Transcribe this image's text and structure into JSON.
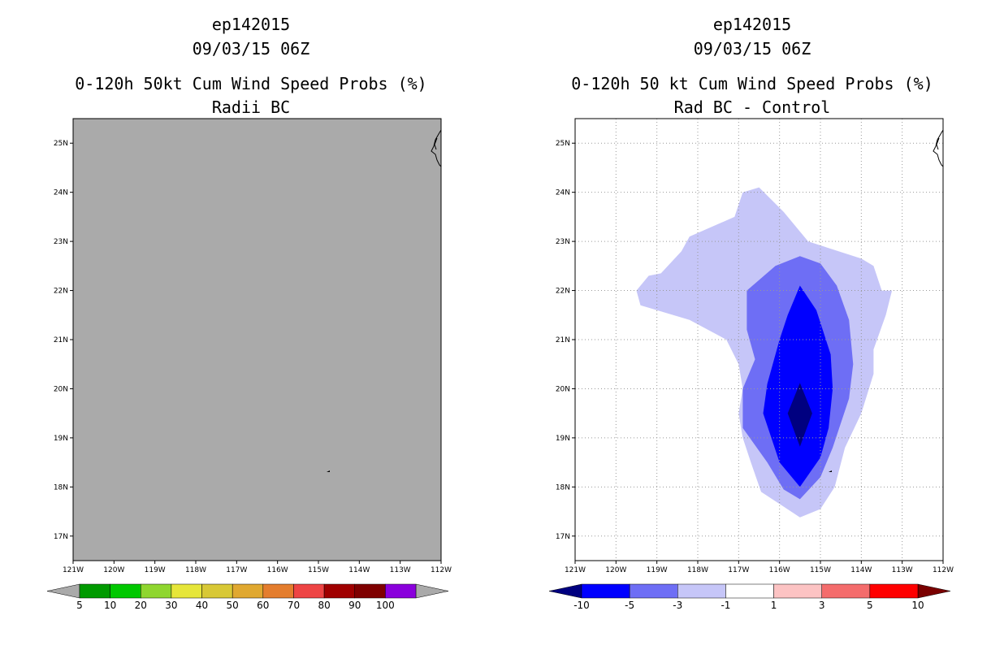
{
  "left_panel": {
    "title_storm": "ep142015",
    "title_date": "09/03/15 06Z",
    "title_product": "0-120h 50kt Cum Wind Speed Probs (%)",
    "title_sub": "Radii BC",
    "colorbar": {
      "labels": [
        "5",
        "10",
        "20",
        "30",
        "40",
        "50",
        "60",
        "70",
        "80",
        "90",
        "100"
      ],
      "colors": [
        "#009a00",
        "#00c800",
        "#8fd62f",
        "#e6e63a",
        "#d8c836",
        "#e0a830",
        "#e47d2d",
        "#ee4444",
        "#a00000",
        "#7f0000",
        "#8a00dc"
      ],
      "end_color": "#aaaaaa"
    }
  },
  "right_panel": {
    "title_storm": "ep142015",
    "title_date": "09/03/15 06Z",
    "title_product": "0-120h 50 kt Cum Wind Speed Probs (%)",
    "title_sub": "Rad BC - Control",
    "colorbar": {
      "labels": [
        "-10",
        "-5",
        "-3",
        "-1",
        "1",
        "3",
        "5",
        "10"
      ],
      "colors": [
        "#0000ff",
        "#6e6ef5",
        "#c6c6f8",
        "#ffffff",
        "#fcc3c3",
        "#f46c6c",
        "#ff0000"
      ],
      "low_end_color": "#000080",
      "high_end_color": "#7a0000"
    }
  },
  "chart_data": [
    {
      "type": "heatmap",
      "title": "0-120h 50kt Cum Wind Speed Probs (%) — Radii BC",
      "lon_range": [
        -121,
        -112
      ],
      "lat_range": [
        16.5,
        25.5
      ],
      "x_tick_labels": [
        "121W",
        "120W",
        "119W",
        "118W",
        "117W",
        "116W",
        "115W",
        "114W",
        "113W",
        "112W"
      ],
      "y_tick_labels": [
        "17N",
        "18N",
        "19N",
        "20N",
        "21N",
        "22N",
        "23N",
        "24N",
        "25N"
      ],
      "note": "Field below 5% everywhere (uniform gray fill)",
      "fill_color": "#aaaaaa"
    },
    {
      "type": "heatmap",
      "title": "0-120h 50 kt Cum Wind Speed Probs (%) — Rad BC - Control",
      "lon_range": [
        -121,
        -112
      ],
      "lat_range": [
        16.5,
        25.5
      ],
      "x_tick_labels": [
        "121W",
        "120W",
        "119W",
        "118W",
        "117W",
        "116W",
        "115W",
        "114W",
        "113W",
        "112W"
      ],
      "y_tick_labels": [
        "17N",
        "18N",
        "19N",
        "20N",
        "21N",
        "22N",
        "23N",
        "24N",
        "25N"
      ],
      "grid": true,
      "contour_levels": [
        -10,
        -5,
        -3,
        -1,
        1,
        3,
        5,
        10
      ],
      "regions": [
        {
          "level": "-3 to -1",
          "color": "#c6c6f8",
          "polygon": [
            [
              -116.5,
              24.1
            ],
            [
              -115.9,
              23.6
            ],
            [
              -115.3,
              23.0
            ],
            [
              -114.0,
              22.65
            ],
            [
              -113.7,
              22.5
            ],
            [
              -113.5,
              22.0
            ],
            [
              -113.25,
              22.0
            ],
            [
              -113.4,
              21.5
            ],
            [
              -113.7,
              20.8
            ],
            [
              -113.7,
              20.3
            ],
            [
              -114.0,
              19.5
            ],
            [
              -114.4,
              18.8
            ],
            [
              -114.65,
              18.0
            ],
            [
              -115.0,
              17.55
            ],
            [
              -115.5,
              17.38
            ],
            [
              -115.9,
              17.6
            ],
            [
              -116.45,
              17.9
            ],
            [
              -116.7,
              18.5
            ],
            [
              -116.9,
              19.0
            ],
            [
              -117.0,
              19.5
            ],
            [
              -116.9,
              20.0
            ],
            [
              -117.0,
              20.5
            ],
            [
              -117.3,
              21.0
            ],
            [
              -118.2,
              21.4
            ],
            [
              -119.4,
              21.7
            ],
            [
              -119.5,
              22.0
            ],
            [
              -119.2,
              22.3
            ],
            [
              -118.9,
              22.35
            ],
            [
              -118.4,
              22.8
            ],
            [
              -118.2,
              23.1
            ],
            [
              -117.1,
              23.5
            ],
            [
              -116.9,
              24.0
            ]
          ]
        },
        {
          "level": "-5 to -3",
          "color": "#6e6ef5",
          "polygon": [
            [
              -115.5,
              22.7
            ],
            [
              -115.0,
              22.55
            ],
            [
              -114.6,
              22.1
            ],
            [
              -114.3,
              21.4
            ],
            [
              -114.2,
              20.5
            ],
            [
              -114.3,
              19.8
            ],
            [
              -114.7,
              18.8
            ],
            [
              -115.0,
              18.2
            ],
            [
              -115.5,
              17.75
            ],
            [
              -115.9,
              17.95
            ],
            [
              -116.3,
              18.5
            ],
            [
              -116.9,
              19.2
            ],
            [
              -116.9,
              20.0
            ],
            [
              -116.6,
              20.6
            ],
            [
              -116.8,
              21.2
            ],
            [
              -116.8,
              22.0
            ],
            [
              -116.1,
              22.5
            ]
          ]
        },
        {
          "level": "-10 to -5",
          "color": "#0000ff",
          "polygon": [
            [
              -115.5,
              22.1
            ],
            [
              -115.1,
              21.6
            ],
            [
              -114.75,
              20.7
            ],
            [
              -114.7,
              20.0
            ],
            [
              -114.8,
              19.2
            ],
            [
              -115.0,
              18.6
            ],
            [
              -115.5,
              18.0
            ],
            [
              -116.0,
              18.5
            ],
            [
              -116.4,
              19.5
            ],
            [
              -116.3,
              20.1
            ],
            [
              -116.0,
              21.0
            ],
            [
              -115.8,
              21.5
            ]
          ]
        },
        {
          "level": "< -10",
          "color": "#000080",
          "polygon": [
            [
              -115.5,
              20.12
            ],
            [
              -115.2,
              19.5
            ],
            [
              -115.5,
              18.82
            ],
            [
              -115.8,
              19.5
            ]
          ]
        }
      ]
    }
  ]
}
